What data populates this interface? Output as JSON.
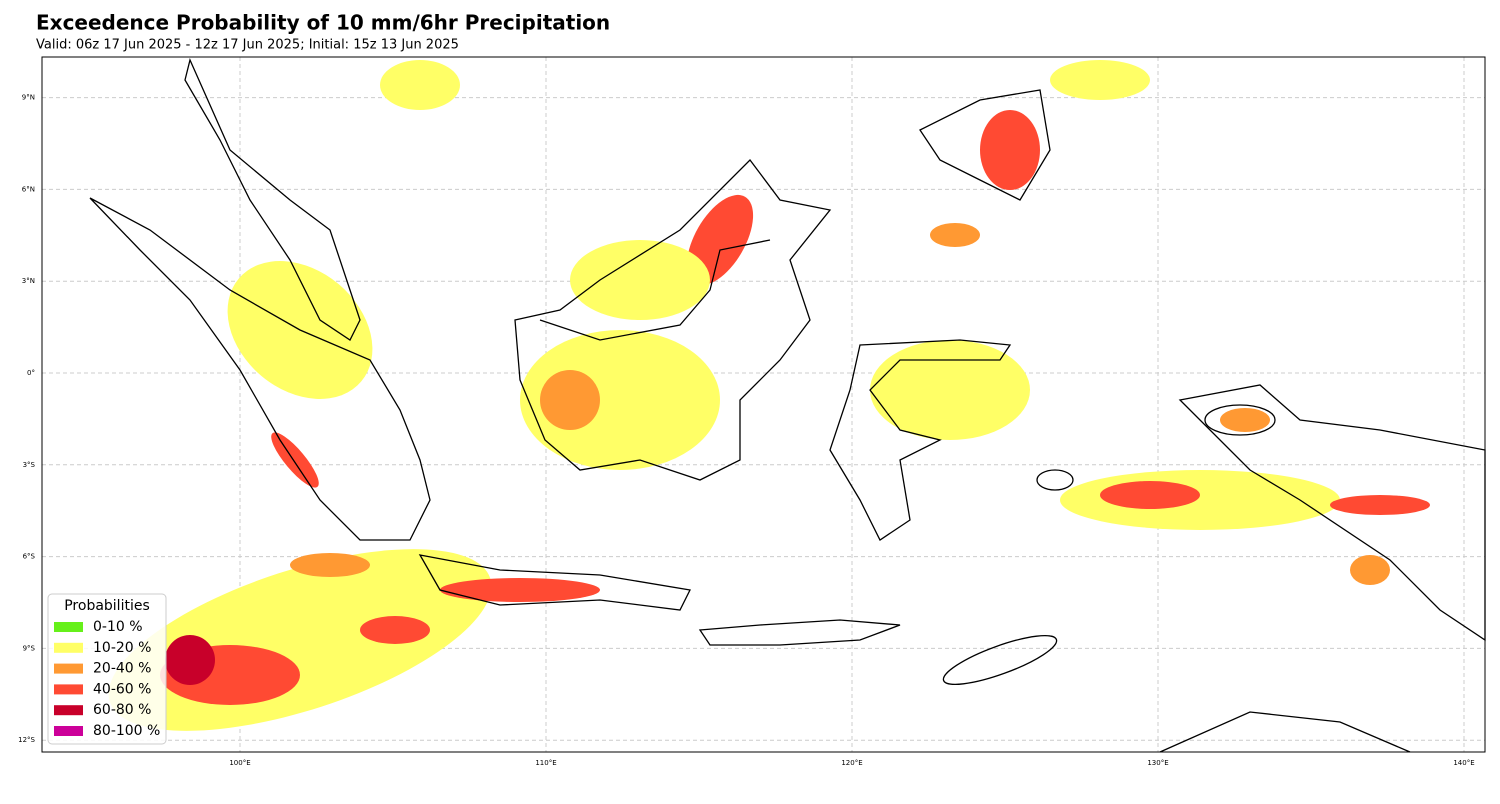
{
  "header": {
    "title": "Exceedence Probability of 10 mm/6hr Precipitation",
    "subtitle": "Valid: 06z 17 Jun 2025 - 12z 17 Jun 2025; Initial: 15z 13 Jun 2025"
  },
  "map": {
    "lat_ticks": [
      {
        "value": 9,
        "label": "9°N"
      },
      {
        "value": 6,
        "label": "6°N"
      },
      {
        "value": 3,
        "label": "3°N"
      },
      {
        "value": 0,
        "label": "0°"
      },
      {
        "value": -3,
        "label": "3°S"
      },
      {
        "value": -6,
        "label": "6°S"
      },
      {
        "value": -9,
        "label": "9°S"
      },
      {
        "value": -12,
        "label": "12°S"
      }
    ],
    "lon_ticks": [
      {
        "value": 100,
        "label": "100°E"
      },
      {
        "value": 110,
        "label": "110°E"
      },
      {
        "value": 120,
        "label": "120°E"
      },
      {
        "value": 130,
        "label": "130°E"
      },
      {
        "value": 140,
        "label": "140°E"
      }
    ],
    "legend": {
      "title": "Probabilities",
      "items": [
        {
          "label": "0-10 %",
          "color": "#66f01a"
        },
        {
          "label": "10-20 %",
          "color": "#ffff66"
        },
        {
          "label": "20-40 %",
          "color": "#ff9933"
        },
        {
          "label": "40-60 %",
          "color": "#ff4a33"
        },
        {
          "label": "60-80 %",
          "color": "#c8002a"
        },
        {
          "label": "80-100 %",
          "color": "#cc0099"
        }
      ]
    }
  }
}
